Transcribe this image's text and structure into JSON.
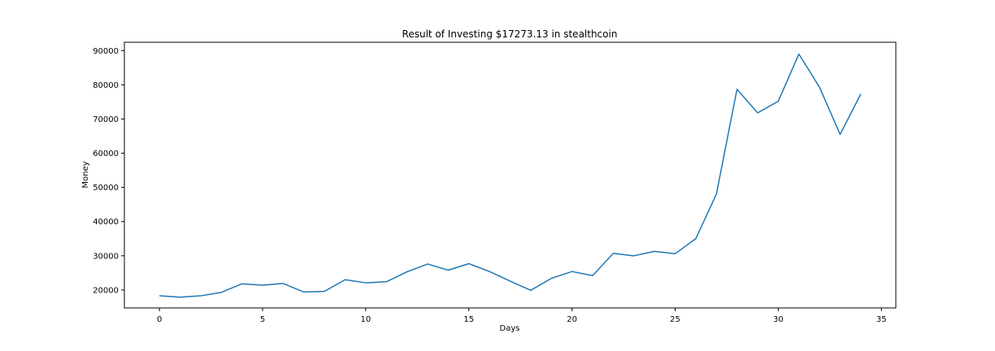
{
  "chart_data": {
    "type": "line",
    "title": "Result of Investing $17273.13 in stealthcoin",
    "xlabel": "Days",
    "ylabel": "Money",
    "xlim": [
      -1.7,
      35.7
    ],
    "ylim": [
      14750,
      92450
    ],
    "xticks": [
      0,
      5,
      10,
      15,
      20,
      25,
      30,
      35
    ],
    "yticks": [
      20000,
      30000,
      40000,
      50000,
      60000,
      70000,
      80000,
      90000
    ],
    "grid": false,
    "series": [
      {
        "color": "#1f77b4",
        "x": [
          0,
          1,
          2,
          3,
          4,
          5,
          6,
          7,
          8,
          9,
          10,
          11,
          12,
          13,
          14,
          15,
          16,
          17,
          18,
          19,
          20,
          21,
          22,
          23,
          24,
          25,
          26,
          27,
          28,
          29,
          30,
          31,
          32,
          33,
          34
        ],
        "y": [
          18300,
          17900,
          18300,
          19300,
          21800,
          21400,
          21900,
          19400,
          19600,
          23000,
          22100,
          22400,
          25300,
          27600,
          25800,
          27700,
          25400,
          22600,
          19900,
          23400,
          25400,
          24200,
          30700,
          30000,
          31300,
          30600,
          35000,
          48000,
          78700,
          71800,
          75200,
          89000,
          79300,
          65500,
          77300
        ]
      }
    ]
  }
}
